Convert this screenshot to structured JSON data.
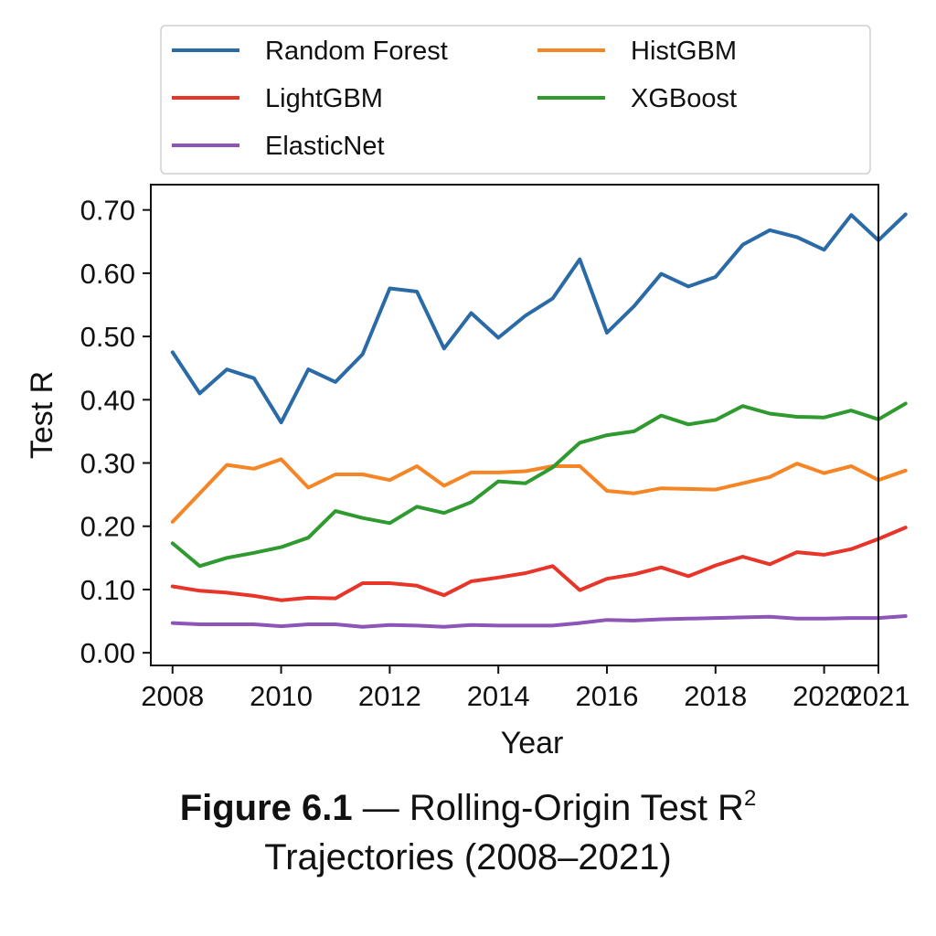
{
  "figure": {
    "label": "Figure 6.1",
    "title_part1": "— Rolling-Origin Test R",
    "title_sup": "2",
    "title_part2": "Trajectories (2008–2021)"
  },
  "chart_data": {
    "type": "line",
    "xlabel": "Year",
    "ylabel": "Test R",
    "xlim": [
      2007.6,
      2021
    ],
    "ylim": [
      -0.02,
      0.74
    ],
    "xticks": [
      2008,
      2010,
      2012,
      2014,
      2016,
      2018,
      2020,
      2021
    ],
    "yticks": [
      0.0,
      0.1,
      0.2,
      0.3,
      0.4,
      0.5,
      0.6,
      0.7
    ],
    "ytick_labels": [
      "0.00",
      "0.10",
      "0.20",
      "0.30",
      "0.40",
      "0.50",
      "0.60",
      "0.70"
    ],
    "grid": false,
    "legend_position": "top, above plot",
    "x": [
      2008,
      2008.5,
      2009,
      2009.5,
      2010,
      2010.5,
      2011,
      2011.5,
      2012,
      2012.5,
      2013,
      2013.5,
      2014,
      2014.5,
      2015,
      2015.5,
      2016,
      2016.5,
      2017,
      2017.5,
      2018,
      2018.5,
      2019,
      2019.5,
      2020,
      2020.5,
      2021,
      2021.5
    ],
    "series": [
      {
        "name": "Random Forest",
        "color": "#2a6aa6",
        "values": [
          0.475,
          0.41,
          0.448,
          0.434,
          0.364,
          0.448,
          0.428,
          0.472,
          0.576,
          0.571,
          0.481,
          0.537,
          0.498,
          0.533,
          0.56,
          0.622,
          0.506,
          0.548,
          0.599,
          0.579,
          0.594,
          0.645,
          0.668,
          0.657,
          0.637,
          0.692,
          0.652,
          0.693
        ]
      },
      {
        "name": "LightGBM",
        "color": "#e8352a",
        "values": [
          0.105,
          0.098,
          0.095,
          0.09,
          0.083,
          0.087,
          0.086,
          0.11,
          0.11,
          0.106,
          0.091,
          0.113,
          0.119,
          0.126,
          0.137,
          0.099,
          0.117,
          0.124,
          0.135,
          0.121,
          0.138,
          0.152,
          0.14,
          0.159,
          0.155,
          0.164,
          0.18,
          0.198
        ]
      },
      {
        "name": "ElasticNet",
        "color": "#8e55b8",
        "values": [
          0.047,
          0.045,
          0.045,
          0.045,
          0.042,
          0.045,
          0.045,
          0.041,
          0.044,
          0.043,
          0.041,
          0.044,
          0.043,
          0.043,
          0.043,
          0.047,
          0.052,
          0.051,
          0.053,
          0.054,
          0.055,
          0.056,
          0.057,
          0.054,
          0.054,
          0.055,
          0.055,
          0.058
        ]
      },
      {
        "name": "HistGBM",
        "color": "#f58525",
        "values": [
          0.207,
          0.252,
          0.297,
          0.291,
          0.306,
          0.261,
          0.282,
          0.282,
          0.273,
          0.295,
          0.264,
          0.285,
          0.285,
          0.287,
          0.295,
          0.295,
          0.256,
          0.252,
          0.26,
          0.259,
          0.258,
          0.268,
          0.278,
          0.299,
          0.284,
          0.295,
          0.273,
          0.288
        ]
      },
      {
        "name": "XGBoost",
        "color": "#2f9a2f",
        "values": [
          0.173,
          0.137,
          0.15,
          0.158,
          0.167,
          0.182,
          0.224,
          0.213,
          0.205,
          0.231,
          0.221,
          0.238,
          0.271,
          0.268,
          0.293,
          0.332,
          0.344,
          0.35,
          0.375,
          0.361,
          0.368,
          0.39,
          0.378,
          0.373,
          0.372,
          0.383,
          0.369,
          0.394
        ]
      }
    ]
  }
}
